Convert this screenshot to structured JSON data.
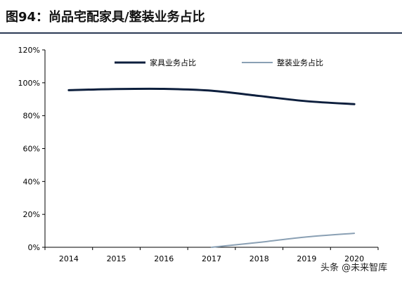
{
  "title": "图94：尚品宅配家具/整装业务占比",
  "watermark": "头条 @未来智库",
  "colors": {
    "series1": "#0d1f3d",
    "series2": "#8aa0b4",
    "axis": "#000000",
    "rule": "#2b3a55"
  },
  "chart_data": {
    "type": "line",
    "x": [
      "2014",
      "2015",
      "2016",
      "2017",
      "2018",
      "2019",
      "2020"
    ],
    "ylim": [
      0,
      120
    ],
    "yticks": [
      "0%",
      "20%",
      "40%",
      "60%",
      "80%",
      "100%",
      "120%"
    ],
    "grid": false,
    "legend_position": "top",
    "series": [
      {
        "name": "家具业务占比",
        "values": [
          95.5,
          96.2,
          96.3,
          95.2,
          92.0,
          88.8,
          87.0
        ]
      },
      {
        "name": "整装业务占比",
        "values": [
          null,
          null,
          null,
          0.0,
          3.0,
          6.3,
          8.5
        ]
      }
    ]
  }
}
